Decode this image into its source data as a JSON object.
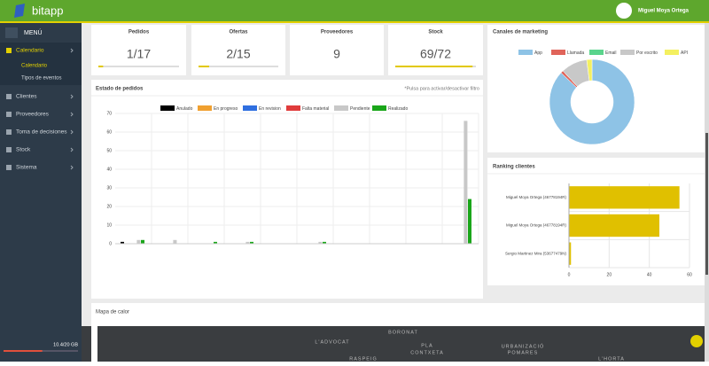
{
  "header": {
    "logo": "bitapp",
    "user": "Miguel Moya Ortega"
  },
  "sidebar": {
    "menu_title": "MENÚ",
    "items": [
      {
        "label": "Calendario",
        "active": true,
        "children": [
          "Calendario",
          "Tipos de eventos"
        ]
      },
      {
        "label": "Clientes"
      },
      {
        "label": "Proveedores"
      },
      {
        "label": "Toma de decisiones"
      },
      {
        "label": "Stock"
      },
      {
        "label": "Sistema"
      }
    ],
    "storage": "10.4/20 GB"
  },
  "kpis": [
    {
      "label": "Pedidos",
      "value": "1/17"
    },
    {
      "label": "Ofertas",
      "value": "2/15"
    },
    {
      "label": "Proveedores",
      "value": "9"
    },
    {
      "label": "Stock",
      "value": "69/72"
    }
  ],
  "pedidos_chart": {
    "type": "bar",
    "title": "Estado de pedidos",
    "note": "*Pulsa para activar/desactivar filtro",
    "categories": [
      null,
      null,
      null,
      null,
      null,
      null,
      null,
      null,
      null,
      null
    ],
    "series": [
      {
        "name": "Anulado",
        "color": "#000000",
        "values": [
          1,
          0,
          0,
          0,
          0,
          0,
          0,
          0,
          0,
          0
        ]
      },
      {
        "name": "En progreso",
        "color": "#f0a030",
        "values": [
          0,
          0,
          0,
          0,
          0,
          0,
          0,
          0,
          0,
          0
        ]
      },
      {
        "name": "En revision",
        "color": "#2f6fe0",
        "values": [
          0,
          0,
          0,
          0,
          0,
          0,
          0,
          0,
          0,
          0
        ]
      },
      {
        "name": "Falta material",
        "color": "#e03c3c",
        "values": [
          0,
          0,
          0,
          0,
          0,
          0,
          0,
          0,
          0,
          0
        ]
      },
      {
        "name": "Pendiente",
        "color": "#c8c8c8",
        "values": [
          2,
          2,
          0,
          1,
          0,
          1,
          0,
          0,
          0,
          66
        ]
      },
      {
        "name": "Realizado",
        "color": "#1aa61a",
        "values": [
          2,
          0,
          1,
          1,
          0,
          1,
          0,
          0,
          0,
          24
        ]
      }
    ],
    "ylim": [
      0,
      70
    ],
    "yticks": [
      0,
      10,
      20,
      30,
      40,
      50,
      60,
      70
    ],
    "grid": true
  },
  "marketing_chart": {
    "type": "pie",
    "title": "Canales de marketing",
    "donut": true,
    "categories": [
      "App",
      "Llamada",
      "Email",
      "Por escrito",
      "API"
    ],
    "values": [
      87,
      1,
      0,
      10,
      2
    ],
    "colors": [
      "#8ec3e6",
      "#e0645a",
      "#5ad48c",
      "#c8c8c8",
      "#f4f060"
    ]
  },
  "ranking_chart": {
    "type": "bar",
    "orientation": "horizontal",
    "title": "Ranking clientes",
    "categories": [
      "Miguel Moya Ortega (46778194R)",
      "Miguel Moya Ortega (46778194R)",
      "Sergio Martinez Mira (53677479N)"
    ],
    "values": [
      55,
      45,
      1
    ],
    "color": "#e0c000",
    "xlim": [
      0,
      60
    ],
    "xticks": [
      0,
      20,
      40,
      60
    ],
    "grid": true
  },
  "heatmap": {
    "title": "Mapa de calor",
    "map_labels": [
      "BORONAT",
      "L'ADVOCAT",
      "PLA",
      "CONTXETA",
      "URBANIZACIÓ",
      "POMARES",
      "RASPEIG",
      "L'HORTA"
    ]
  }
}
